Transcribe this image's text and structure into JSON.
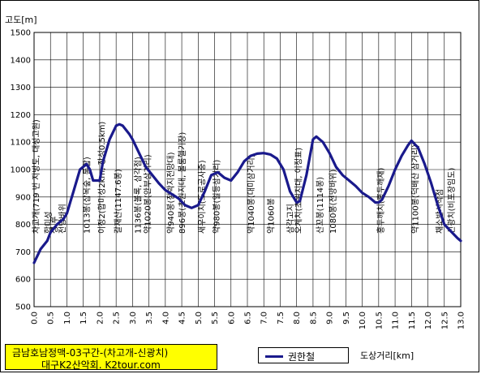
{
  "chart_data": {
    "type": "line",
    "ylabel": "고도[m]",
    "xlabel": "도상거리[km]",
    "xlim": [
      0,
      13
    ],
    "ylim": [
      500,
      1500
    ],
    "x_ticks": [
      "0.0",
      "0.5",
      "1.0",
      "1.5",
      "2.0",
      "2.5",
      "3.0",
      "3.5",
      "4.0",
      "4.5",
      "5.0",
      "5.5",
      "6.0",
      "6.5",
      "7.0",
      "7.5",
      "8.0",
      "8.5",
      "9.0",
      "9.5",
      "10.0",
      "10.5",
      "11.0",
      "11.5",
      "12.0",
      "12.5",
      "13.0"
    ],
    "y_ticks": [
      "500",
      "600",
      "700",
      "800",
      "900",
      "1000",
      "1100",
      "1200",
      "1300",
      "1400",
      "1500"
    ],
    "grid": true,
    "legend_position": "bottom-center",
    "series": [
      {
        "name": "권한철",
        "color": "#1a1a8c",
        "x": [
          0.0,
          0.2,
          0.4,
          0.5,
          0.7,
          0.9,
          1.0,
          1.1,
          1.2,
          1.4,
          1.6,
          1.7,
          1.8,
          2.0,
          2.1,
          2.3,
          2.5,
          2.6,
          2.7,
          2.9,
          3.0,
          3.2,
          3.4,
          3.6,
          3.8,
          4.0,
          4.2,
          4.4,
          4.6,
          4.8,
          5.0,
          5.2,
          5.4,
          5.6,
          5.8,
          6.0,
          6.2,
          6.4,
          6.6,
          6.8,
          7.0,
          7.2,
          7.4,
          7.6,
          7.8,
          8.0,
          8.1,
          8.3,
          8.5,
          8.6,
          8.8,
          9.0,
          9.2,
          9.4,
          9.6,
          9.8,
          10.0,
          10.2,
          10.4,
          10.5,
          10.6,
          10.8,
          11.0,
          11.2,
          11.4,
          11.5,
          11.7,
          11.9,
          12.1,
          12.3,
          12.5,
          12.7,
          12.9,
          13.0
        ],
        "y": [
          660,
          710,
          740,
          770,
          800,
          820,
          840,
          880,
          920,
          1000,
          1020,
          1000,
          960,
          960,
          1030,
          1110,
          1160,
          1165,
          1160,
          1130,
          1110,
          1060,
          1010,
          980,
          950,
          925,
          910,
          895,
          870,
          860,
          870,
          920,
          980,
          990,
          970,
          960,
          990,
          1030,
          1050,
          1058,
          1060,
          1055,
          1040,
          1000,
          920,
          880,
          885,
          980,
          1110,
          1120,
          1100,
          1060,
          1010,
          980,
          960,
          940,
          915,
          900,
          880,
          880,
          890,
          940,
          1000,
          1050,
          1090,
          1105,
          1080,
          1020,
          950,
          870,
          800,
          775,
          750,
          740
        ]
      }
    ],
    "annotations": [
      {
        "x": 0.05,
        "text": "차고개(719 번 지방도, 대성고원)"
      },
      {
        "x": 0.42,
        "text": "합미성"
      },
      {
        "x": 0.6,
        "text": "성 루"
      },
      {
        "x": 0.85,
        "text": "전망바위"
      },
      {
        "x": 1.6,
        "text": "1013봉(잡목숲, 통합)"
      },
      {
        "x": 2.05,
        "text": "이정2(합미성2km, 장성0.5km)"
      },
      {
        "x": 2.55,
        "text": "갈재산(1147.6봉)"
      },
      {
        "x": 3.15,
        "text": "1136봉(볼록, 삼각점)"
      },
      {
        "x": 3.45,
        "text": "약1020봉(안부삼거리)"
      },
      {
        "x": 4.15,
        "text": "약940봉(점박지전망대)"
      },
      {
        "x": 4.5,
        "text": "896봉(초원지대, 볼룸헬기장)"
      },
      {
        "x": 5.1,
        "text": "새우이치(도로공사중)"
      },
      {
        "x": 5.55,
        "text": "약980봉(일등삼거리)"
      },
      {
        "x": 6.6,
        "text": "약1040봉(대미삼거리)"
      },
      {
        "x": 7.2,
        "text": "약1060봉"
      },
      {
        "x": 7.8,
        "text": "삼각고지"
      },
      {
        "x": 8.05,
        "text": "오계치(초원지대, 이정표)"
      },
      {
        "x": 8.7,
        "text": "산꼬봉(1114봉)"
      },
      {
        "x": 9.1,
        "text": "1080봉(전망바위)"
      },
      {
        "x": 10.55,
        "text": "홍두깨치(홍두깨재)"
      },
      {
        "x": 11.6,
        "text": "약1100봉(덕배산 삼거리)"
      },
      {
        "x": 12.35,
        "text": "채소밭시작점"
      },
      {
        "x": 12.7,
        "text": "신광치(비포장임도)"
      }
    ]
  },
  "title": {
    "line1": "금남호남정맥-03구간-(차고개-신광치)",
    "line2": "대구K2산악회. K2tour.com"
  }
}
